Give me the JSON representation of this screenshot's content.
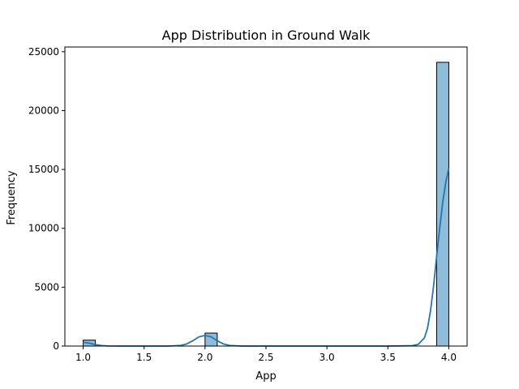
{
  "chart_data": {
    "type": "bar",
    "title": "App Distribution in Ground Walk",
    "xlabel": "App",
    "ylabel": "Frequency",
    "xlim": [
      0.85,
      4.15
    ],
    "ylim": [
      0,
      25400
    ],
    "x_ticks": [
      1.0,
      1.5,
      2.0,
      2.5,
      3.0,
      3.5,
      4.0
    ],
    "x_tick_labels": [
      "1.0",
      "1.5",
      "2.0",
      "2.5",
      "3.0",
      "3.5",
      "4.0"
    ],
    "y_ticks": [
      0,
      5000,
      10000,
      15000,
      20000,
      25000
    ],
    "y_tick_labels": [
      "0",
      "5000",
      "10000",
      "15000",
      "20000",
      "25000"
    ],
    "bars": [
      {
        "x0": 1.0,
        "x1": 1.1,
        "value": 500
      },
      {
        "x0": 2.0,
        "x1": 2.1,
        "value": 1100
      },
      {
        "x0": 3.9,
        "x1": 4.0,
        "value": 24100
      }
    ],
    "kde": {
      "x": [
        1.0,
        1.05,
        1.1,
        1.15,
        1.2,
        1.3,
        1.5,
        1.7,
        1.8,
        1.85,
        1.9,
        1.95,
        2.0,
        2.05,
        2.1,
        2.15,
        2.2,
        2.3,
        2.5,
        3.0,
        3.5,
        3.7,
        3.75,
        3.8,
        3.825,
        3.85,
        3.875,
        3.9,
        3.925,
        3.95,
        3.975,
        4.0
      ],
      "y": [
        320,
        250,
        120,
        40,
        10,
        0,
        0,
        0,
        50,
        180,
        450,
        780,
        900,
        780,
        450,
        180,
        50,
        0,
        0,
        0,
        0,
        30,
        150,
        700,
        1500,
        3000,
        5100,
        7600,
        10000,
        12200,
        13900,
        15100
      ]
    },
    "bar_color": "#8fbcd9",
    "bar_edge_color": "#000000",
    "line_color": "#1f77b4",
    "grid": false,
    "legend": "none"
  }
}
